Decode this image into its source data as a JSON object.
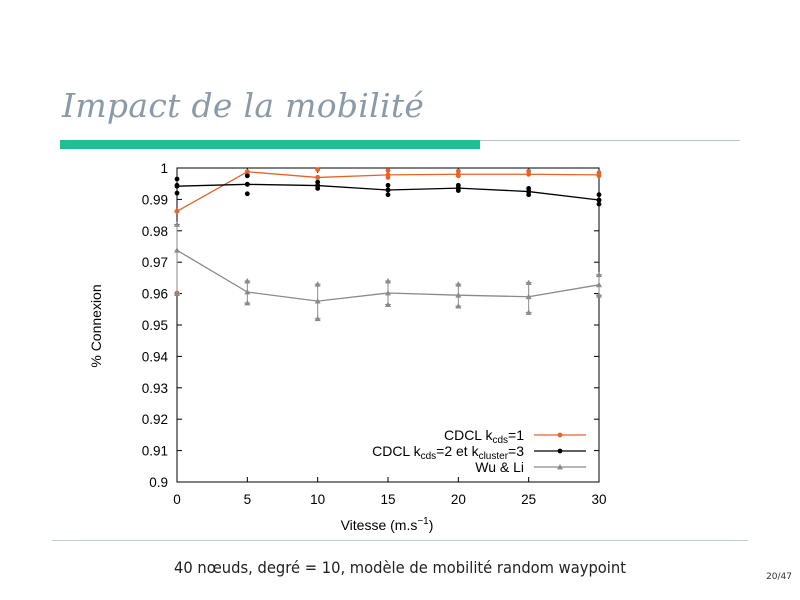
{
  "slide": {
    "title": "Impact de la mobilité",
    "caption": "40 nœuds, degré = 10, modèle de mobilité random waypoint",
    "page_number": "20/47"
  },
  "chart_data": {
    "type": "line",
    "xlabel": "Vitesse (m.s−1)",
    "xlabel_parts": {
      "base": "Vitesse (m.s",
      "sup": "−1",
      "end": ")"
    },
    "ylabel": "% Connexion",
    "x": [
      0,
      5,
      10,
      15,
      20,
      25,
      30
    ],
    "xlim": [
      0,
      30
    ],
    "ylim": [
      0.9,
      1.0
    ],
    "x_ticks": [
      "0",
      "5",
      "10",
      "15",
      "20",
      "25",
      "30"
    ],
    "y_ticks": [
      "0.9",
      "0.91",
      "0.92",
      "0.93",
      "0.94",
      "0.95",
      "0.96",
      "0.97",
      "0.98",
      "0.99",
      "1"
    ],
    "legend_position": "bottom-right",
    "series": [
      {
        "name": "CDCL kcds=1",
        "legend_parts": [
          {
            "t": "CDCL k"
          },
          {
            "t": "cds",
            "sub": true
          },
          {
            "t": "=1"
          }
        ],
        "color": "#e8622a",
        "marker": "circle",
        "values": [
          0.9862,
          0.9988,
          0.997,
          0.9978,
          0.998,
          0.998,
          0.9978
        ],
        "samples": [
          [
            0.9862,
            0.9602
          ],
          [
            0.9988,
            0.9978
          ],
          [
            0.9995,
            0.997
          ],
          [
            0.9992,
            0.997
          ],
          [
            0.999,
            0.9975
          ],
          [
            0.999,
            0.998
          ],
          [
            0.9985,
            0.9975
          ]
        ]
      },
      {
        "name": "CDCL kcds=2 et kcluster=3",
        "legend_parts": [
          {
            "t": "CDCL k"
          },
          {
            "t": "cds",
            "sub": true
          },
          {
            "t": "=2 et k"
          },
          {
            "t": "cluster",
            "sub": true
          },
          {
            "t": "=3"
          }
        ],
        "color": "#000000",
        "marker": "circle",
        "values": [
          0.9942,
          0.9948,
          0.9944,
          0.993,
          0.9936,
          0.9925,
          0.9898
        ],
        "samples": [
          [
            0.9965,
            0.9945,
            0.992
          ],
          [
            0.9975,
            0.9948,
            0.9918
          ],
          [
            0.9955,
            0.9944,
            0.9935
          ],
          [
            0.9945,
            0.993,
            0.9915
          ],
          [
            0.9945,
            0.9936,
            0.9928
          ],
          [
            0.9935,
            0.9925,
            0.9915
          ],
          [
            0.9915,
            0.9898,
            0.9885
          ]
        ]
      },
      {
        "name": "Wu & Li",
        "legend_parts": [
          {
            "t": "Wu & Li"
          }
        ],
        "color": "#8a8a8a",
        "marker": "triangle",
        "values": [
          0.9738,
          0.9605,
          0.9576,
          0.9602,
          0.9595,
          0.959,
          0.9628
        ],
        "error_low": [
          0.96,
          0.957,
          0.952,
          0.9565,
          0.956,
          0.954,
          0.9595
        ],
        "error_high": [
          0.982,
          0.964,
          0.963,
          0.964,
          0.963,
          0.9635,
          0.966
        ]
      }
    ]
  }
}
